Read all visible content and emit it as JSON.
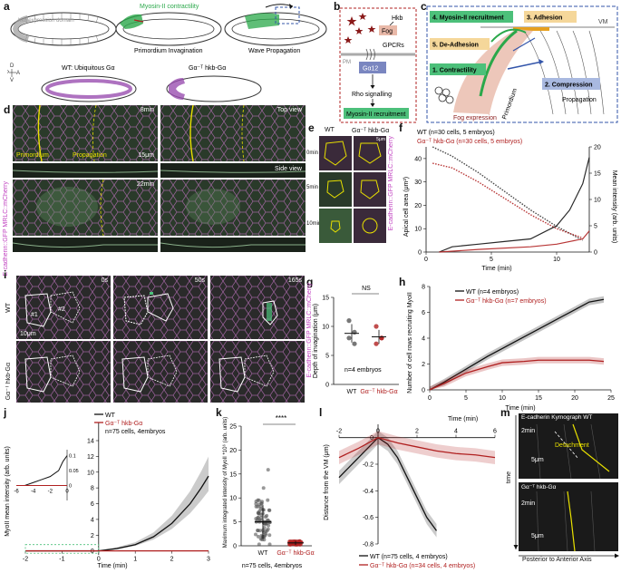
{
  "panels": {
    "a": {
      "label": "a",
      "hkb_domain": "hkb expression domain",
      "contractility": "Myosin-II contractility",
      "primordium_invagination": "Primordium Invagination",
      "wave_propagation": "Wave Propagation",
      "wt_caption": "WT: Ubiquitous Gα",
      "mutant_caption": "Gα⁻ᵀ hkb-Gα",
      "axis_p": "P",
      "axis_a": "A",
      "axis_d": "D",
      "axis_v": "V"
    },
    "b": {
      "label": "b",
      "hkb": "Hkb",
      "fog": "Fog",
      "gpcrs": "GPCRs",
      "pm": "PM",
      "galpha": "Gα12",
      "rho": "Rho signalling",
      "myosin": "Myosin-II recruitment"
    },
    "c": {
      "label": "c",
      "step4": "4. Myosin-II recruitment",
      "step3": "3. Adhesion",
      "step5": "5. De-Adhesion",
      "step1": "1. Contractility",
      "step2": "2. Compression",
      "vm": "VM",
      "propagation": "Propagation",
      "primordium": "Primordium",
      "fog_expression": "Fog expression"
    },
    "d": {
      "label": "d",
      "time1": "8min",
      "time2": "22min",
      "top_view": "Top view",
      "side_view": "Side view",
      "primordium": "Primordium",
      "propagation": "Propagation",
      "scale": "15μm",
      "channel_label": "E-cadherin::GFP MRLC::mCherry"
    },
    "e": {
      "label": "e",
      "col_wt": "WT",
      "col_mut": "Gα⁻ᵀ hkb-Gα",
      "rows": [
        "0min",
        "5min",
        "10min"
      ],
      "scale": "5μm",
      "channel_label": "E-cadherin::GFP MRLC::mCherry"
    },
    "f": {
      "label": "f",
      "legend_wt": "WT (n=30 cells, 5 embryos)",
      "legend_mut": "Gα⁻ᵀ hkb-Gα (n=30 cells, 5 embryos)",
      "ylabel_left": "Apical cell area (μm²)",
      "ylabel_right": "Mean intensity (arb. units)",
      "xlabel": "Time (min)"
    },
    "g": {
      "label": "g",
      "ylabel": "Depth of invagination (μm)",
      "ns": "NS",
      "n_label": "n=4 embryos",
      "cat_wt": "WT",
      "cat_mut": "Gα⁻ᵀ hkb-Gα"
    },
    "h": {
      "label": "h",
      "legend_wt": "WT (n=4 embryos)",
      "legend_mut": "Gα⁻ᵀ hkb-Gα (n=7 embryos)",
      "ylabel": "Number of cell rows recruiting MyoII",
      "xlabel": "Time (min)"
    },
    "i": {
      "label": "i",
      "row_wt": "WT",
      "row_mut": "Gα⁻ᵀ hkb-Gα",
      "times": [
        "0s",
        "50s",
        "165s"
      ],
      "cell1": "#1",
      "cell2": "#2",
      "scale": "10μm",
      "channel_label": "E-cadherin::GFP MRLC::mCherry"
    },
    "j": {
      "label": "j",
      "legend_wt": "WT",
      "legend_mut": "Gα⁻ᵀ hkb-Gα",
      "n_label": "n=75 cells, 4embryos",
      "ylabel": "MyoII mean intensity (arb. units)",
      "xlabel": "Time (min)"
    },
    "k": {
      "label": "k",
      "ylabel": "Maximum integrated intensity of MyoII *10⁶ (arb. units)",
      "sig": "****",
      "cat_wt": "WT",
      "cat_mut": "Gα⁻ᵀ hkb-Gα",
      "n_label": "n=75 cells, 4embryos"
    },
    "l": {
      "label": "l",
      "xlabel": "Time (min)",
      "ylabel": "Distance from the VM (μm)",
      "legend_wt": "WT (n=75 cells, 4 embryos)",
      "legend_mut": "Gα⁻ᵀ hkb-Gα (n=34 cells, 4 embryos)"
    },
    "m": {
      "label": "m",
      "title": "E-cadherin Kymograph WT",
      "time1": "2min",
      "scale1": "5μm",
      "detachment": "Detachment",
      "mut_label": "Gα⁻ᵀ hkb-Gα",
      "time2": "2min",
      "scale2": "5μm",
      "yaxis": "time",
      "xaxis": "Posterior to Anterior Axis"
    }
  },
  "chart_data": [
    {
      "panel": "f",
      "type": "line",
      "xlim": [
        0,
        12.5
      ],
      "ylim_left": [
        0,
        45
      ],
      "ylim_right": [
        0,
        20
      ],
      "xticks": [
        0,
        5,
        10
      ],
      "yticks_left": [
        0,
        10,
        20,
        30,
        40
      ],
      "yticks_right": [
        0,
        5,
        10,
        15,
        20
      ],
      "series": [
        {
          "name": "WT",
          "axis": "left",
          "style": "dotted",
          "color": "#333333",
          "x": [
            0.5,
            2,
            4,
            6,
            8,
            10,
            12
          ],
          "y": [
            45,
            41,
            34,
            26,
            18,
            11,
            5
          ]
        },
        {
          "name": "Gα⁻ᵀ hkb-Gα",
          "axis": "left",
          "style": "dotted",
          "color": "#b02020",
          "x": [
            0.5,
            2,
            4,
            6,
            8,
            10,
            12
          ],
          "y": [
            38,
            36,
            30,
            23,
            16,
            10,
            6
          ]
        },
        {
          "name": "WT",
          "axis": "right",
          "style": "solid",
          "color": "#111111",
          "x": [
            1,
            2,
            4,
            6,
            8,
            10,
            11,
            12,
            12.5
          ],
          "y": [
            0,
            1,
            1.5,
            2,
            2.5,
            5,
            8,
            13,
            18
          ]
        },
        {
          "name": "Gα⁻ᵀ hkb-Gα",
          "axis": "right",
          "style": "solid",
          "color": "#b02020",
          "x": [
            1,
            4,
            8,
            10,
            12,
            12.5
          ],
          "y": [
            0,
            0.5,
            1,
            1.5,
            2.5,
            4
          ]
        }
      ]
    },
    {
      "panel": "g",
      "type": "scatter",
      "categories": [
        "WT",
        "Gα⁻ᵀ hkb-Gα"
      ],
      "ylim": [
        0,
        15
      ],
      "yticks": [
        0,
        5,
        10,
        15
      ],
      "points": [
        [
          11,
          9,
          8,
          7
        ],
        [
          10,
          8,
          7,
          8
        ]
      ],
      "means": [
        8.8,
        8.2
      ],
      "sd": [
        1.6,
        1.2
      ],
      "colors": [
        "#555555",
        "#b02020"
      ]
    },
    {
      "panel": "h",
      "type": "line",
      "xlim": [
        0,
        25
      ],
      "ylim": [
        0,
        8
      ],
      "xticks": [
        0,
        5,
        10,
        15,
        20,
        25
      ],
      "yticks": [
        0,
        2,
        4,
        6,
        8
      ],
      "series": [
        {
          "name": "WT",
          "color": "#111111",
          "x": [
            0,
            2,
            5,
            8,
            10,
            13,
            15,
            18,
            20,
            22,
            24
          ],
          "y": [
            0,
            0.6,
            1.6,
            2.6,
            3.2,
            4.1,
            4.7,
            5.6,
            6.2,
            6.8,
            7.0
          ]
        },
        {
          "name": "Gα⁻ᵀ hkb-Gα",
          "color": "#b02020",
          "x": [
            0,
            2,
            5,
            8,
            10,
            13,
            15,
            18,
            20,
            22,
            24
          ],
          "y": [
            0,
            0.5,
            1.3,
            1.8,
            2.1,
            2.2,
            2.3,
            2.3,
            2.3,
            2.3,
            2.2
          ]
        }
      ]
    },
    {
      "panel": "j",
      "type": "line",
      "xlim": [
        -2,
        3
      ],
      "ylim": [
        -0.5,
        14
      ],
      "xticks": [
        -2,
        -1,
        0,
        1,
        2,
        3
      ],
      "yticks": [
        0,
        2,
        4,
        6,
        8,
        10,
        12,
        14
      ],
      "series": [
        {
          "name": "WT",
          "color": "#111111",
          "x": [
            -2,
            -1,
            0,
            0.5,
            1,
            1.5,
            2,
            2.5,
            2.8,
            3
          ],
          "y": [
            0,
            0,
            0,
            0.3,
            0.8,
            1.8,
            3.5,
            6,
            8,
            9.5
          ]
        },
        {
          "name": "Gα⁻ᵀ hkb-Gα",
          "color": "#b02020",
          "x": [
            -2,
            0,
            1,
            2,
            3
          ],
          "y": [
            0,
            0,
            0,
            0,
            0
          ]
        }
      ],
      "inset": {
        "xlim": [
          -6,
          0
        ],
        "ylim": [
          -0.05,
          0.12
        ],
        "xticks": [
          -6,
          -4,
          -2,
          0
        ],
        "yticks": [
          0,
          0.05,
          0.1
        ],
        "series": [
          {
            "name": "WT",
            "color": "#111111",
            "x": [
              -6,
              -5,
              -4,
              -3,
              -2,
              -1,
              -0.5,
              0
            ],
            "y": [
              0,
              0,
              0.01,
              0.02,
              0.03,
              0.05,
              0.08,
              0.1
            ]
          },
          {
            "name": "Gα⁻ᵀ hkb-Gα",
            "color": "#b02020",
            "x": [
              -6,
              -4,
              -2,
              0
            ],
            "y": [
              0,
              0,
              0,
              0
            ]
          }
        ]
      }
    },
    {
      "panel": "k",
      "type": "scatter",
      "categories": [
        "WT",
        "Gα⁻ᵀ hkb-Gα"
      ],
      "ylim": [
        0,
        25
      ],
      "yticks": [
        0,
        5,
        10,
        15,
        20,
        25
      ],
      "means": [
        5,
        0.6
      ],
      "sd": [
        3.5,
        0.4
      ],
      "colors": [
        "#555555",
        "#b02020"
      ]
    },
    {
      "panel": "l",
      "type": "line",
      "xlim": [
        -2,
        6
      ],
      "ylim": [
        -0.8,
        0.1
      ],
      "xticks": [
        -2,
        0,
        2,
        4,
        6
      ],
      "yticks": [
        0,
        -0.2,
        -0.4,
        -0.6,
        -0.8
      ],
      "series": [
        {
          "name": "WT",
          "color": "#111111",
          "x": [
            -2,
            -1,
            0,
            0.5,
            1,
            1.5,
            2,
            2.5,
            3
          ],
          "y": [
            -0.3,
            -0.15,
            0,
            -0.05,
            -0.15,
            -0.3,
            -0.45,
            -0.6,
            -0.7
          ]
        },
        {
          "name": "Gα⁻ᵀ hkb-Gα",
          "color": "#b02020",
          "x": [
            -2,
            -1,
            0,
            1,
            2,
            3,
            4,
            5,
            6
          ],
          "y": [
            -0.15,
            -0.08,
            0,
            -0.04,
            -0.07,
            -0.1,
            -0.12,
            -0.13,
            -0.15
          ]
        }
      ]
    }
  ]
}
